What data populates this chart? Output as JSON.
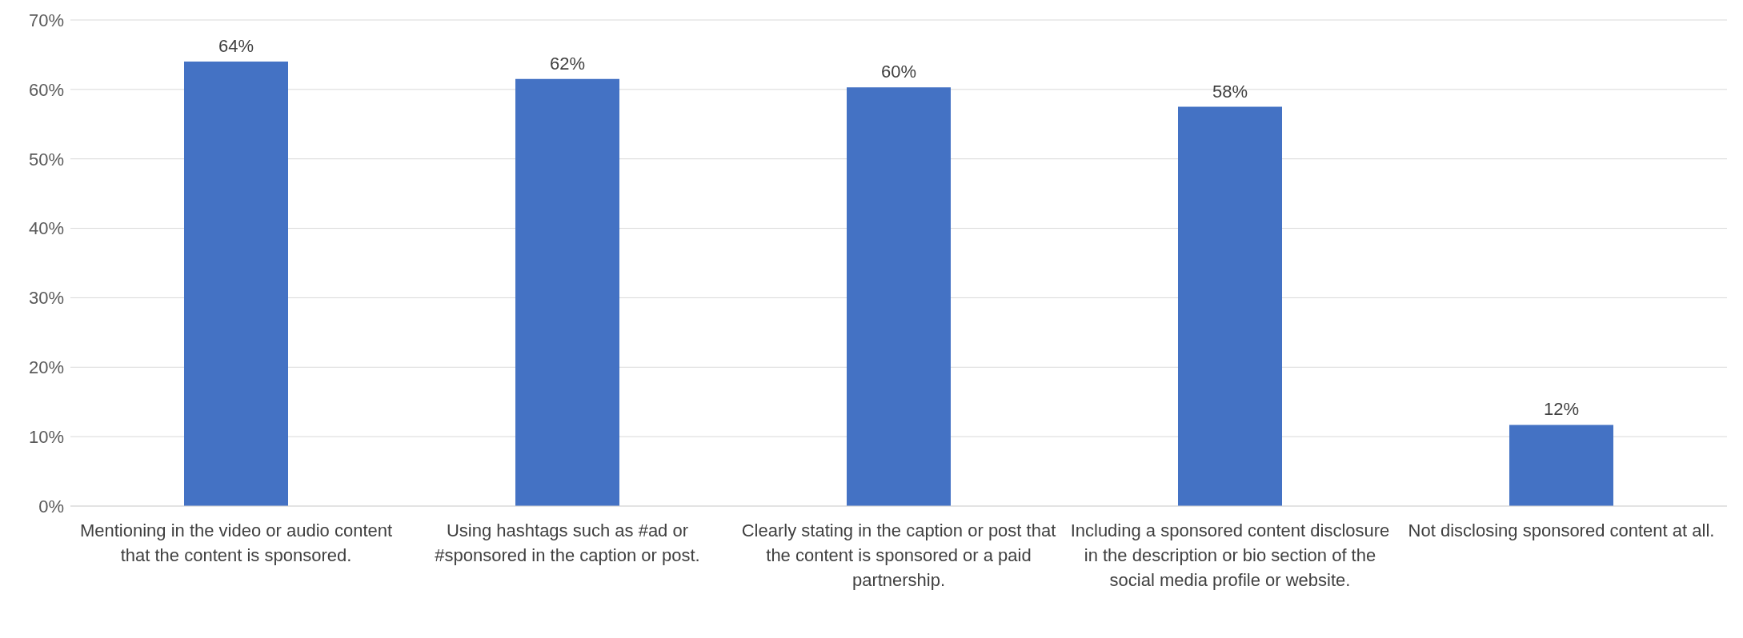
{
  "chart_data": {
    "type": "bar",
    "categories": [
      "Mentioning in the video or audio content that the content is sponsored.",
      "Using hashtags such as #ad or #sponsored in the caption or post.",
      "Clearly stating in the caption or post that the content is sponsored or a paid partnership.",
      "Including a sponsored content disclosure in the description or bio section of the social media profile or website.",
      "Not disclosing sponsored content at all."
    ],
    "values": [
      64,
      61.5,
      60.3,
      57.5,
      11.7
    ],
    "value_labels": [
      "64%",
      "62%",
      "60%",
      "58%",
      "12%"
    ],
    "color": "#4472c4",
    "ylim": [
      0,
      70
    ],
    "yticks": [
      {
        "value": 0,
        "label": "0%"
      },
      {
        "value": 10,
        "label": "10%"
      },
      {
        "value": 20,
        "label": "20%"
      },
      {
        "value": 30,
        "label": "30%"
      },
      {
        "value": 40,
        "label": "40%"
      },
      {
        "value": 50,
        "label": "50%"
      },
      {
        "value": 60,
        "label": "60%"
      },
      {
        "value": 70,
        "label": "70%"
      }
    ],
    "grid": "y",
    "legend": false
  }
}
